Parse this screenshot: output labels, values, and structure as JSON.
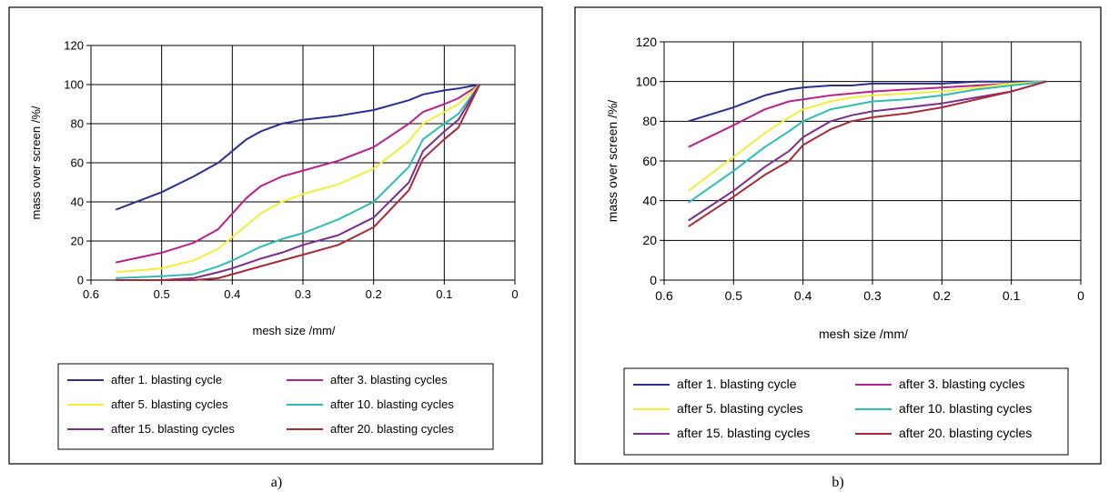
{
  "captions": [
    "a)",
    "b)"
  ],
  "chart_data": [
    {
      "type": "line",
      "xlabel": "mesh size /mm/",
      "ylabel": "mass over screen /%/",
      "xlim": [
        0.6,
        0
      ],
      "ylim": [
        0,
        120
      ],
      "xticks": [
        "0.6",
        "0.5",
        "0.4",
        "0.3",
        "0.2",
        "0.1",
        "0"
      ],
      "yticks": [
        "0",
        "20",
        "40",
        "60",
        "80",
        "100",
        "120"
      ],
      "grid": true,
      "legend_position": "bottom",
      "series": [
        {
          "name": "after 1. blasting cycle",
          "color": "#2b2f8f",
          "x": [
            0.565,
            0.5,
            0.455,
            0.42,
            0.38,
            0.36,
            0.33,
            0.3,
            0.25,
            0.2,
            0.15,
            0.13,
            0.1,
            0.08,
            0.05
          ],
          "y": [
            36,
            45,
            53,
            60,
            72,
            76,
            80,
            82,
            84,
            87,
            92,
            95,
            97,
            98,
            100
          ]
        },
        {
          "name": "after 3. blasting cycles",
          "color": "#b7238a",
          "x": [
            0.565,
            0.5,
            0.455,
            0.42,
            0.4,
            0.38,
            0.36,
            0.33,
            0.3,
            0.25,
            0.2,
            0.15,
            0.13,
            0.1,
            0.08,
            0.05
          ],
          "y": [
            9,
            14,
            19,
            26,
            34,
            42,
            48,
            53,
            56,
            61,
            68,
            80,
            86,
            90,
            93,
            100
          ]
        },
        {
          "name": "after 5. blasting cycles",
          "color": "#f2ee3c",
          "x": [
            0.565,
            0.5,
            0.455,
            0.42,
            0.4,
            0.38,
            0.36,
            0.33,
            0.3,
            0.25,
            0.2,
            0.15,
            0.13,
            0.1,
            0.08,
            0.05
          ],
          "y": [
            4,
            6,
            10,
            16,
            22,
            28,
            34,
            40,
            44,
            49,
            57,
            71,
            80,
            86,
            90,
            100
          ]
        },
        {
          "name": "after 10. blasting cycles",
          "color": "#2fbcb4",
          "x": [
            0.565,
            0.5,
            0.455,
            0.42,
            0.4,
            0.36,
            0.33,
            0.3,
            0.25,
            0.2,
            0.15,
            0.13,
            0.1,
            0.08,
            0.05
          ],
          "y": [
            1,
            2,
            3,
            7,
            10,
            17,
            21,
            24,
            31,
            40,
            58,
            72,
            80,
            85,
            100
          ]
        },
        {
          "name": "after 15. blasting cycles",
          "color": "#7b2e8e",
          "x": [
            0.565,
            0.5,
            0.455,
            0.42,
            0.4,
            0.36,
            0.33,
            0.3,
            0.25,
            0.2,
            0.15,
            0.13,
            0.1,
            0.08,
            0.05
          ],
          "y": [
            0,
            0,
            1,
            4,
            6,
            11,
            14,
            18,
            23,
            32,
            50,
            66,
            76,
            82,
            100
          ]
        },
        {
          "name": "after 20. blasting cycles",
          "color": "#a52a3a",
          "x": [
            0.565,
            0.5,
            0.455,
            0.42,
            0.4,
            0.36,
            0.33,
            0.3,
            0.25,
            0.2,
            0.15,
            0.13,
            0.1,
            0.08,
            0.05
          ],
          "y": [
            0,
            0,
            0,
            1,
            3,
            7,
            10,
            13,
            18,
            27,
            46,
            62,
            72,
            78,
            100
          ]
        }
      ]
    },
    {
      "type": "line",
      "xlabel": "mesh size /mm/",
      "ylabel": "mass over screen /%/",
      "xlim": [
        0.6,
        0
      ],
      "ylim": [
        0,
        120
      ],
      "xticks": [
        "0.6",
        "0.5",
        "0.4",
        "0.3",
        "0.2",
        "0.1",
        "0"
      ],
      "yticks": [
        "0",
        "20",
        "40",
        "60",
        "80",
        "100",
        "120"
      ],
      "grid": true,
      "legend_position": "bottom",
      "series": [
        {
          "name": "after 1. blasting cycle",
          "color": "#2b2f8f",
          "x": [
            0.565,
            0.5,
            0.455,
            0.42,
            0.4,
            0.36,
            0.33,
            0.3,
            0.25,
            0.2,
            0.15,
            0.1,
            0.05
          ],
          "y": [
            80,
            87,
            93,
            96,
            97,
            98,
            98,
            99,
            99,
            99,
            100,
            100,
            100
          ]
        },
        {
          "name": "after 3. blasting cycles",
          "color": "#b7238a",
          "x": [
            0.565,
            0.5,
            0.455,
            0.42,
            0.4,
            0.36,
            0.33,
            0.3,
            0.25,
            0.2,
            0.15,
            0.1,
            0.05
          ],
          "y": [
            67,
            78,
            86,
            90,
            91,
            93,
            94,
            95,
            96,
            97,
            98,
            99,
            100
          ]
        },
        {
          "name": "after 5. blasting cycles",
          "color": "#f2ee3c",
          "x": [
            0.565,
            0.5,
            0.455,
            0.42,
            0.4,
            0.36,
            0.33,
            0.3,
            0.25,
            0.2,
            0.15,
            0.1,
            0.05
          ],
          "y": [
            45,
            62,
            74,
            82,
            86,
            90,
            92,
            93,
            94,
            95,
            97,
            99,
            100
          ]
        },
        {
          "name": "after 10. blasting cycles",
          "color": "#2fbcb4",
          "x": [
            0.565,
            0.5,
            0.455,
            0.42,
            0.4,
            0.36,
            0.33,
            0.3,
            0.25,
            0.2,
            0.15,
            0.1,
            0.05
          ],
          "y": [
            39,
            55,
            67,
            75,
            80,
            86,
            88,
            90,
            91,
            93,
            96,
            98,
            100
          ]
        },
        {
          "name": "after 15. blasting cycles",
          "color": "#7b2e8e",
          "x": [
            0.565,
            0.5,
            0.455,
            0.42,
            0.4,
            0.36,
            0.33,
            0.3,
            0.25,
            0.2,
            0.15,
            0.1,
            0.05
          ],
          "y": [
            30,
            45,
            57,
            65,
            72,
            80,
            83,
            85,
            87,
            89,
            92,
            95,
            100
          ]
        },
        {
          "name": "after 20. blasting cycles",
          "color": "#a52a3a",
          "x": [
            0.565,
            0.5,
            0.455,
            0.42,
            0.4,
            0.36,
            0.33,
            0.3,
            0.25,
            0.2,
            0.15,
            0.1,
            0.05
          ],
          "y": [
            27,
            42,
            53,
            60,
            68,
            76,
            80,
            82,
            84,
            87,
            91,
            95,
            100
          ]
        }
      ]
    }
  ]
}
